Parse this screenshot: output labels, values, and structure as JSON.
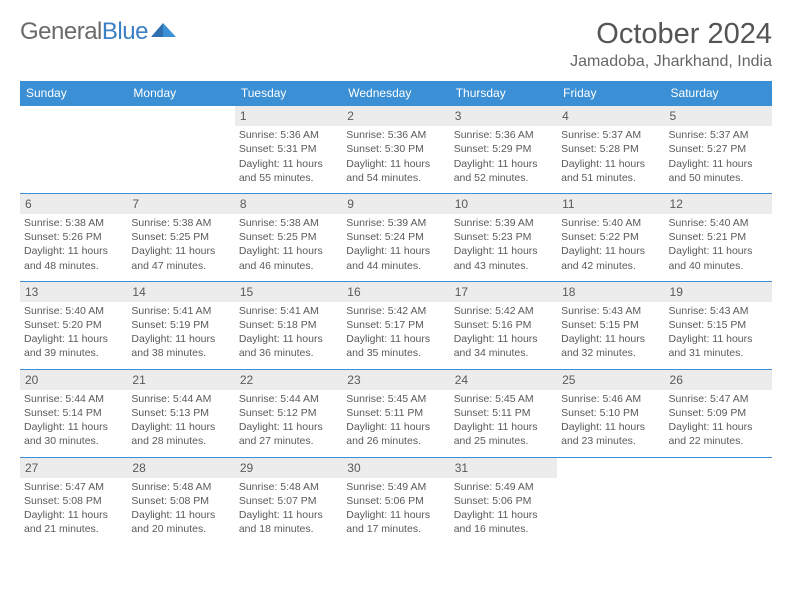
{
  "brand": {
    "part1": "General",
    "part2": "Blue"
  },
  "title": "October 2024",
  "location": "Jamadoba, Jharkhand, India",
  "colors": {
    "header_bg": "#3b8fd4",
    "header_text": "#ffffff",
    "daynum_bg": "#ececec",
    "border": "#3b8fd4",
    "body_text": "#5a5a5a"
  },
  "day_labels": [
    "Sunday",
    "Monday",
    "Tuesday",
    "Wednesday",
    "Thursday",
    "Friday",
    "Saturday"
  ],
  "weeks": [
    [
      {
        "n": "",
        "sr": "",
        "ss": "",
        "dl": ""
      },
      {
        "n": "",
        "sr": "",
        "ss": "",
        "dl": ""
      },
      {
        "n": "1",
        "sr": "Sunrise: 5:36 AM",
        "ss": "Sunset: 5:31 PM",
        "dl": "Daylight: 11 hours and 55 minutes."
      },
      {
        "n": "2",
        "sr": "Sunrise: 5:36 AM",
        "ss": "Sunset: 5:30 PM",
        "dl": "Daylight: 11 hours and 54 minutes."
      },
      {
        "n": "3",
        "sr": "Sunrise: 5:36 AM",
        "ss": "Sunset: 5:29 PM",
        "dl": "Daylight: 11 hours and 52 minutes."
      },
      {
        "n": "4",
        "sr": "Sunrise: 5:37 AM",
        "ss": "Sunset: 5:28 PM",
        "dl": "Daylight: 11 hours and 51 minutes."
      },
      {
        "n": "5",
        "sr": "Sunrise: 5:37 AM",
        "ss": "Sunset: 5:27 PM",
        "dl": "Daylight: 11 hours and 50 minutes."
      }
    ],
    [
      {
        "n": "6",
        "sr": "Sunrise: 5:38 AM",
        "ss": "Sunset: 5:26 PM",
        "dl": "Daylight: 11 hours and 48 minutes."
      },
      {
        "n": "7",
        "sr": "Sunrise: 5:38 AM",
        "ss": "Sunset: 5:25 PM",
        "dl": "Daylight: 11 hours and 47 minutes."
      },
      {
        "n": "8",
        "sr": "Sunrise: 5:38 AM",
        "ss": "Sunset: 5:25 PM",
        "dl": "Daylight: 11 hours and 46 minutes."
      },
      {
        "n": "9",
        "sr": "Sunrise: 5:39 AM",
        "ss": "Sunset: 5:24 PM",
        "dl": "Daylight: 11 hours and 44 minutes."
      },
      {
        "n": "10",
        "sr": "Sunrise: 5:39 AM",
        "ss": "Sunset: 5:23 PM",
        "dl": "Daylight: 11 hours and 43 minutes."
      },
      {
        "n": "11",
        "sr": "Sunrise: 5:40 AM",
        "ss": "Sunset: 5:22 PM",
        "dl": "Daylight: 11 hours and 42 minutes."
      },
      {
        "n": "12",
        "sr": "Sunrise: 5:40 AM",
        "ss": "Sunset: 5:21 PM",
        "dl": "Daylight: 11 hours and 40 minutes."
      }
    ],
    [
      {
        "n": "13",
        "sr": "Sunrise: 5:40 AM",
        "ss": "Sunset: 5:20 PM",
        "dl": "Daylight: 11 hours and 39 minutes."
      },
      {
        "n": "14",
        "sr": "Sunrise: 5:41 AM",
        "ss": "Sunset: 5:19 PM",
        "dl": "Daylight: 11 hours and 38 minutes."
      },
      {
        "n": "15",
        "sr": "Sunrise: 5:41 AM",
        "ss": "Sunset: 5:18 PM",
        "dl": "Daylight: 11 hours and 36 minutes."
      },
      {
        "n": "16",
        "sr": "Sunrise: 5:42 AM",
        "ss": "Sunset: 5:17 PM",
        "dl": "Daylight: 11 hours and 35 minutes."
      },
      {
        "n": "17",
        "sr": "Sunrise: 5:42 AM",
        "ss": "Sunset: 5:16 PM",
        "dl": "Daylight: 11 hours and 34 minutes."
      },
      {
        "n": "18",
        "sr": "Sunrise: 5:43 AM",
        "ss": "Sunset: 5:15 PM",
        "dl": "Daylight: 11 hours and 32 minutes."
      },
      {
        "n": "19",
        "sr": "Sunrise: 5:43 AM",
        "ss": "Sunset: 5:15 PM",
        "dl": "Daylight: 11 hours and 31 minutes."
      }
    ],
    [
      {
        "n": "20",
        "sr": "Sunrise: 5:44 AM",
        "ss": "Sunset: 5:14 PM",
        "dl": "Daylight: 11 hours and 30 minutes."
      },
      {
        "n": "21",
        "sr": "Sunrise: 5:44 AM",
        "ss": "Sunset: 5:13 PM",
        "dl": "Daylight: 11 hours and 28 minutes."
      },
      {
        "n": "22",
        "sr": "Sunrise: 5:44 AM",
        "ss": "Sunset: 5:12 PM",
        "dl": "Daylight: 11 hours and 27 minutes."
      },
      {
        "n": "23",
        "sr": "Sunrise: 5:45 AM",
        "ss": "Sunset: 5:11 PM",
        "dl": "Daylight: 11 hours and 26 minutes."
      },
      {
        "n": "24",
        "sr": "Sunrise: 5:45 AM",
        "ss": "Sunset: 5:11 PM",
        "dl": "Daylight: 11 hours and 25 minutes."
      },
      {
        "n": "25",
        "sr": "Sunrise: 5:46 AM",
        "ss": "Sunset: 5:10 PM",
        "dl": "Daylight: 11 hours and 23 minutes."
      },
      {
        "n": "26",
        "sr": "Sunrise: 5:47 AM",
        "ss": "Sunset: 5:09 PM",
        "dl": "Daylight: 11 hours and 22 minutes."
      }
    ],
    [
      {
        "n": "27",
        "sr": "Sunrise: 5:47 AM",
        "ss": "Sunset: 5:08 PM",
        "dl": "Daylight: 11 hours and 21 minutes."
      },
      {
        "n": "28",
        "sr": "Sunrise: 5:48 AM",
        "ss": "Sunset: 5:08 PM",
        "dl": "Daylight: 11 hours and 20 minutes."
      },
      {
        "n": "29",
        "sr": "Sunrise: 5:48 AM",
        "ss": "Sunset: 5:07 PM",
        "dl": "Daylight: 11 hours and 18 minutes."
      },
      {
        "n": "30",
        "sr": "Sunrise: 5:49 AM",
        "ss": "Sunset: 5:06 PM",
        "dl": "Daylight: 11 hours and 17 minutes."
      },
      {
        "n": "31",
        "sr": "Sunrise: 5:49 AM",
        "ss": "Sunset: 5:06 PM",
        "dl": "Daylight: 11 hours and 16 minutes."
      },
      {
        "n": "",
        "sr": "",
        "ss": "",
        "dl": ""
      },
      {
        "n": "",
        "sr": "",
        "ss": "",
        "dl": ""
      }
    ]
  ]
}
